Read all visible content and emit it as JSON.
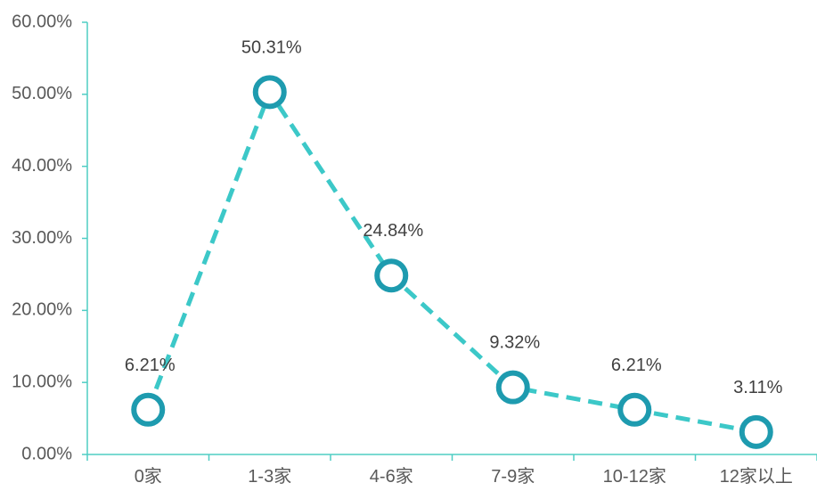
{
  "chart_data": {
    "type": "line",
    "categories": [
      "0家",
      "1-3家",
      "4-6家",
      "7-9家",
      "10-12家",
      "12家以上"
    ],
    "values": [
      6.21,
      50.31,
      24.84,
      9.32,
      6.21,
      3.11
    ],
    "data_labels": [
      "6.21%",
      "50.31%",
      "24.84%",
      "9.32%",
      "6.21%",
      "3.11%"
    ],
    "y_ticks": [
      "0.00%",
      "10.00%",
      "20.00%",
      "30.00%",
      "40.00%",
      "50.00%",
      "60.00%"
    ],
    "ylim": [
      0,
      60
    ],
    "grid": false,
    "legend": "none",
    "title": "",
    "xlabel": "",
    "ylabel": "",
    "colors": {
      "axis": "#4ECDC4",
      "line": "#3CC8C8",
      "marker_stroke": "#1E9BAF",
      "marker_fill": "#FFFFFF"
    }
  }
}
